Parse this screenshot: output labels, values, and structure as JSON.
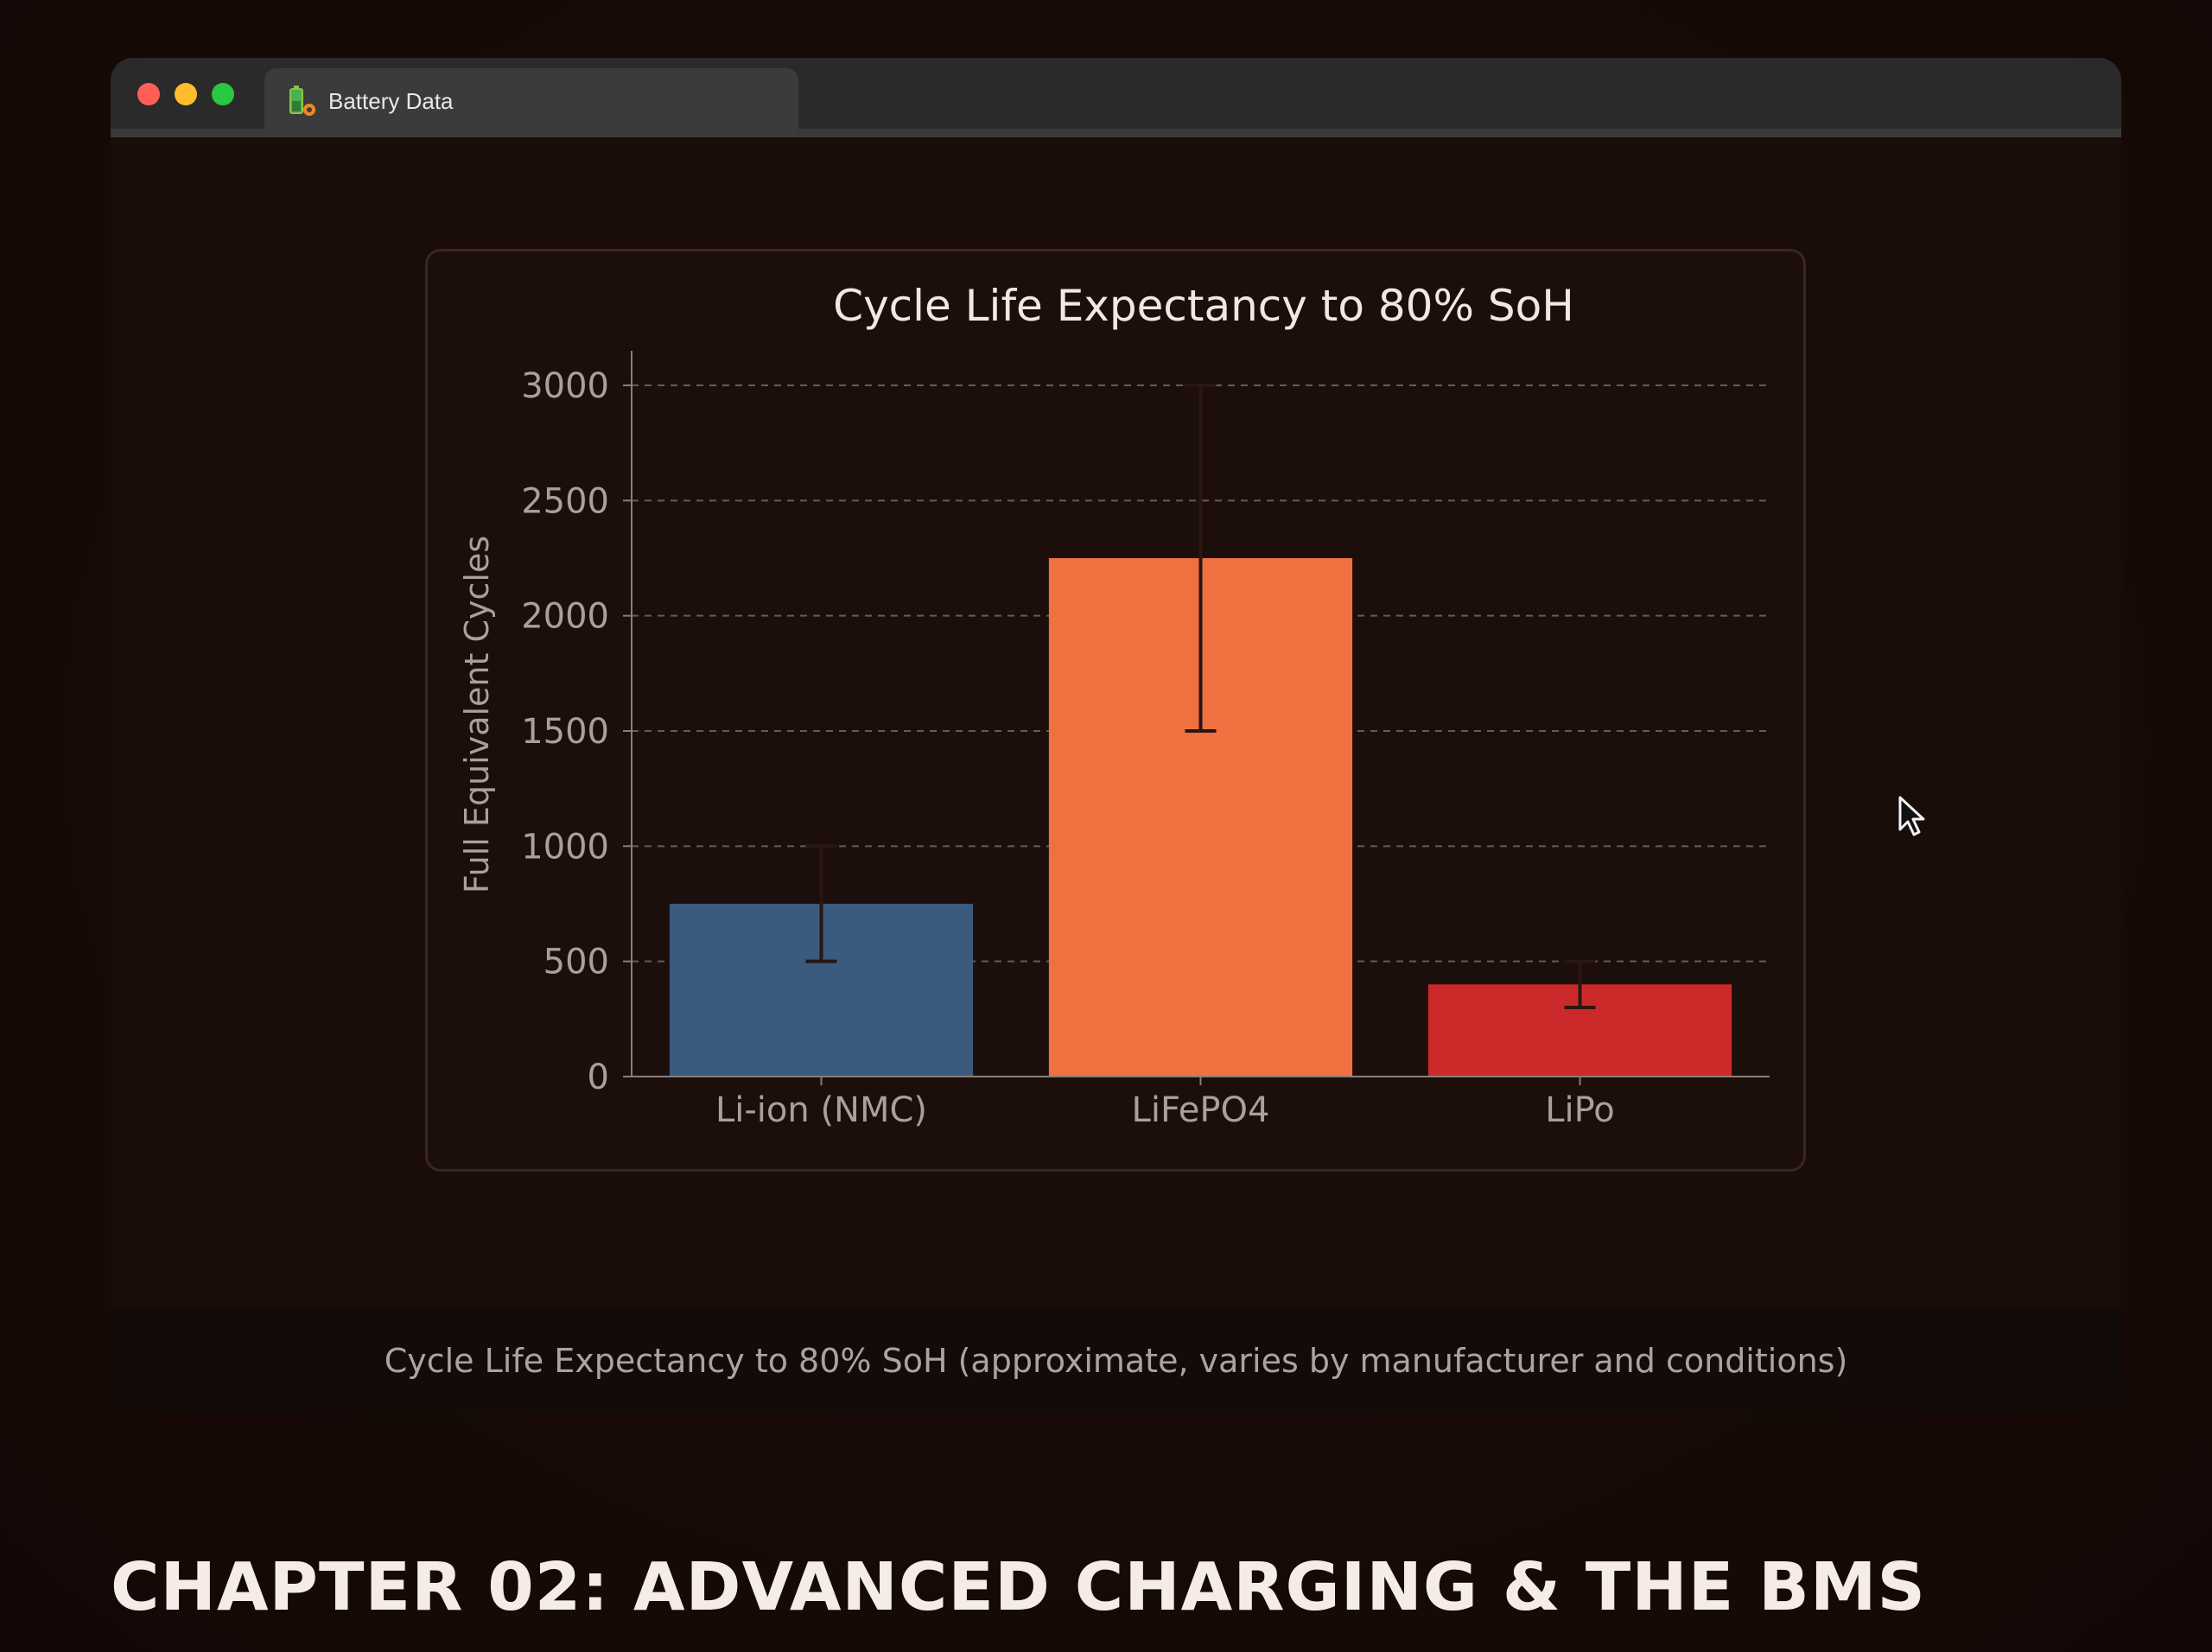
{
  "browser": {
    "tab_title": "Battery Data",
    "tab_icon": "battery-settings-icon"
  },
  "caption": "Cycle Life Expectancy to 80% SoH (approximate, varies by manufacturer and conditions)",
  "chapter_heading": "CHAPTER 02: ADVANCED CHARGING & THE BMS",
  "chart_data": {
    "type": "bar",
    "title": "Cycle Life Expectancy to 80% SoH",
    "xlabel": "",
    "ylabel": "Full Equivalent Cycles",
    "categories": [
      "Li-ion (NMC)",
      "LiFePO4",
      "LiPo"
    ],
    "values": [
      750,
      2250,
      400
    ],
    "error_low": [
      500,
      1500,
      300
    ],
    "error_high": [
      1000,
      3000,
      500
    ],
    "colors": [
      "#3a5a7e",
      "#f07040",
      "#cc2a2a"
    ],
    "ylim": [
      0,
      3000
    ],
    "yticks": [
      "0",
      "500",
      "1000",
      "1500",
      "2000",
      "2500",
      "3000"
    ],
    "grid": true,
    "grid_style": "dashed-horizontal",
    "legend": "none"
  },
  "theme": {
    "background": "#180b08",
    "card_background": "#1c0f0b",
    "text_light": "#f0e8e4",
    "text_muted": "#a9a3a1"
  }
}
